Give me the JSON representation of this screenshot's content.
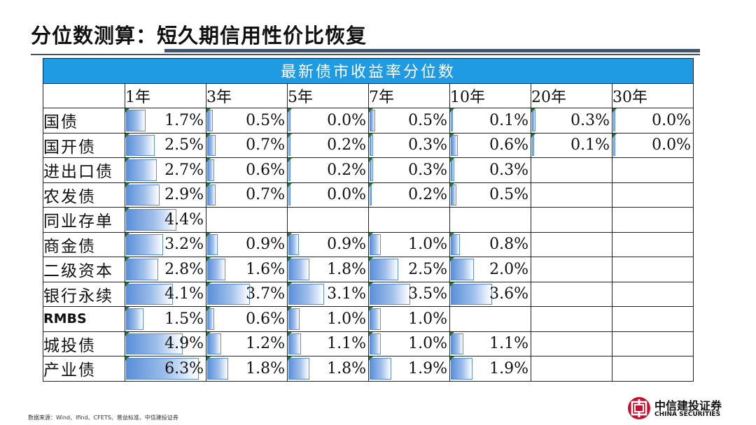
{
  "title": "分位数测算：短久期信用性价比恢复",
  "table": {
    "header": "最新债市收益率分位数",
    "columns": [
      "1年",
      "3年",
      "5年",
      "7年",
      "10年",
      "20年",
      "30年"
    ],
    "rows": [
      {
        "label": "国债",
        "values": [
          "1.7%",
          "0.5%",
          "0.0%",
          "0.5%",
          "0.1%",
          "0.3%",
          "0.0%"
        ]
      },
      {
        "label": "国开债",
        "values": [
          "2.5%",
          "0.7%",
          "0.2%",
          "0.3%",
          "0.6%",
          "0.1%",
          "0.0%"
        ]
      },
      {
        "label": "进出口债",
        "values": [
          "2.7%",
          "0.6%",
          "0.2%",
          "0.3%",
          "0.3%",
          "",
          ""
        ]
      },
      {
        "label": "农发债",
        "values": [
          "2.9%",
          "0.7%",
          "0.0%",
          "0.2%",
          "0.5%",
          "",
          ""
        ]
      },
      {
        "label": "同业存单",
        "values": [
          "4.4%",
          "",
          "",
          "",
          "",
          "",
          ""
        ]
      },
      {
        "label": "商金债",
        "values": [
          "3.2%",
          "0.9%",
          "0.9%",
          "1.0%",
          "0.8%",
          "",
          ""
        ]
      },
      {
        "label": "二级资本",
        "values": [
          "2.8%",
          "1.6%",
          "1.8%",
          "2.5%",
          "2.0%",
          "",
          ""
        ]
      },
      {
        "label": "银行永续",
        "values": [
          "4.1%",
          "3.7%",
          "3.1%",
          "3.5%",
          "3.6%",
          "",
          ""
        ]
      },
      {
        "label": "RMBS",
        "values": [
          "1.5%",
          "0.6%",
          "1.0%",
          "1.0%",
          "",
          "",
          ""
        ]
      },
      {
        "label": "城投债",
        "values": [
          "4.9%",
          "1.2%",
          "1.1%",
          "1.0%",
          "1.1%",
          "",
          ""
        ]
      },
      {
        "label": "产业债",
        "values": [
          "6.3%",
          "1.8%",
          "1.8%",
          "1.9%",
          "1.9%",
          "",
          ""
        ]
      }
    ]
  },
  "footnote": "数据来源：Wind、Ifind、CFETS、普益标准、中信建投证券",
  "logo": {
    "cn": "中信建投证券",
    "en": "CHINA SECURITIES"
  },
  "colors": {
    "header_band": "#1e9be3",
    "bar": "#5a8fd8",
    "indicator": "#1a7d2c",
    "rule": "#44546a"
  }
}
